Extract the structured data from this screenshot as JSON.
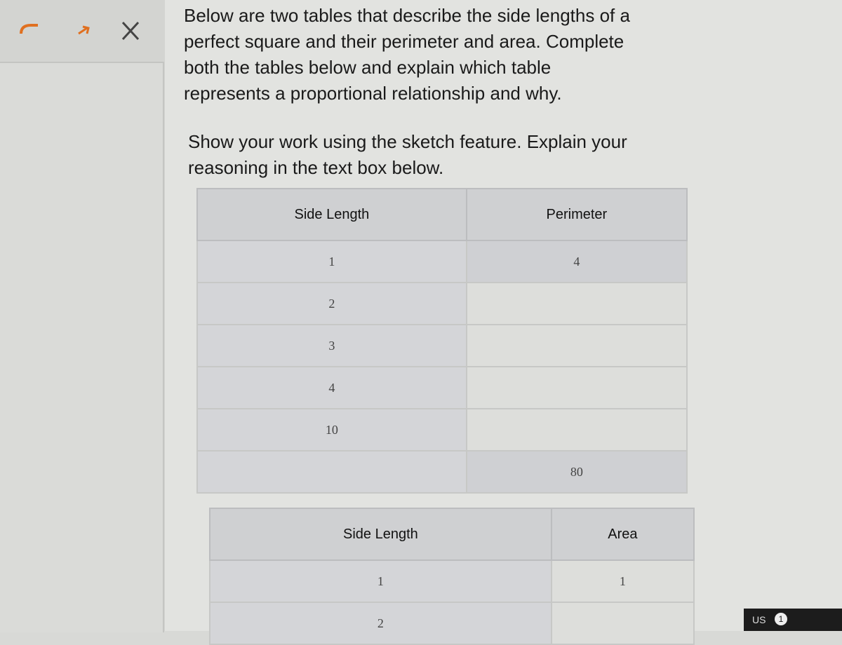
{
  "prompt": {
    "paragraphs": [
      [
        "Below are two tables that describe the side lengths of a",
        "perfect square and their perimeter and area.  Complete",
        "both the tables below and explain which table",
        "represents a proportional relationship and why."
      ],
      [
        "Show your work using the sketch feature. Explain your",
        "reasoning in the text box below."
      ]
    ]
  },
  "tables": [
    {
      "headers": [
        "Side Length",
        "Perimeter"
      ],
      "rows": [
        [
          1,
          4
        ],
        [
          2,
          null
        ],
        [
          3,
          null
        ],
        [
          4,
          null
        ],
        [
          10,
          null
        ],
        [
          null,
          80
        ]
      ]
    },
    {
      "headers": [
        "Side Length",
        "Area"
      ],
      "rows": [
        [
          1,
          1
        ],
        [
          2,
          null
        ]
      ]
    }
  ],
  "taskbar": {
    "locale": "US",
    "badge": 1
  }
}
